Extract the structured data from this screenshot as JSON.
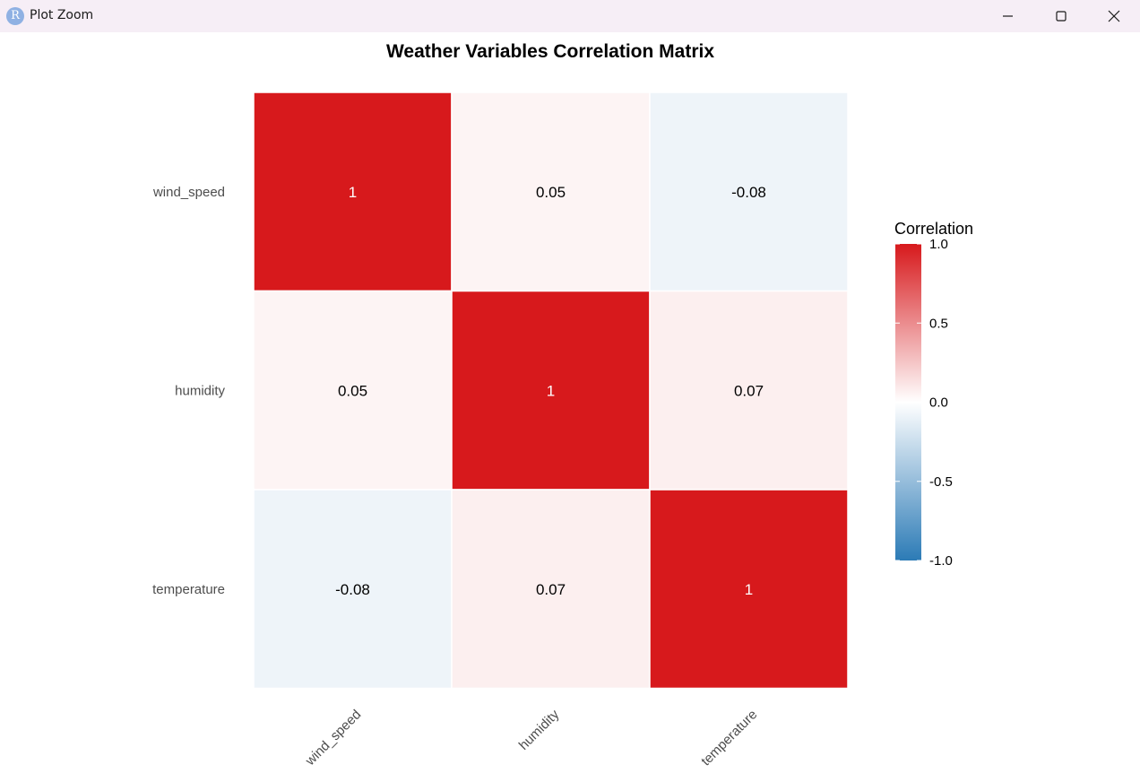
{
  "window": {
    "title": "Plot Zoom",
    "app_icon_letter": "R"
  },
  "chart_data": {
    "type": "heatmap",
    "title": "Weather Variables Correlation Matrix",
    "x_categories": [
      "wind_speed",
      "humidity",
      "temperature"
    ],
    "y_categories": [
      "wind_speed",
      "humidity",
      "temperature"
    ],
    "cells": [
      {
        "x": "wind_speed",
        "y": "wind_speed",
        "value": 1,
        "label": "1"
      },
      {
        "x": "humidity",
        "y": "wind_speed",
        "value": 0.05,
        "label": "0.05"
      },
      {
        "x": "temperature",
        "y": "wind_speed",
        "value": -0.08,
        "label": "-0.08"
      },
      {
        "x": "wind_speed",
        "y": "humidity",
        "value": 0.05,
        "label": "0.05"
      },
      {
        "x": "humidity",
        "y": "humidity",
        "value": 1,
        "label": "1"
      },
      {
        "x": "temperature",
        "y": "humidity",
        "value": 0.07,
        "label": "0.07"
      },
      {
        "x": "wind_speed",
        "y": "temperature",
        "value": -0.08,
        "label": "-0.08"
      },
      {
        "x": "humidity",
        "y": "temperature",
        "value": 0.07,
        "label": "0.07"
      },
      {
        "x": "temperature",
        "y": "temperature",
        "value": 1,
        "label": "1"
      }
    ],
    "legend": {
      "title": "Correlation",
      "min": -1,
      "max": 1,
      "ticks": [
        "1.0",
        "0.5",
        "0.0",
        "-0.5",
        "-1.0"
      ],
      "tick_values": [
        1,
        0.5,
        0,
        -0.5,
        -1
      ],
      "placement": "right"
    },
    "colors": {
      "high": "#d7191c",
      "mid": "#ffffff",
      "low": "#2c7bb6"
    },
    "grid": false
  }
}
